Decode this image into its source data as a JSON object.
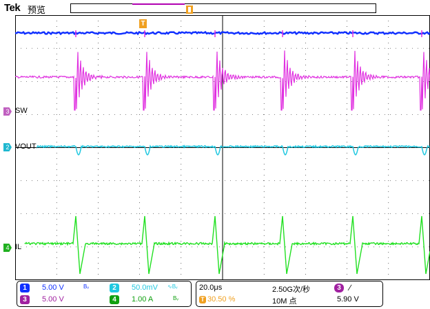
{
  "header": {
    "brand": "Tek",
    "mode": "预览"
  },
  "trigger_marker_label": "T",
  "channels": [
    {
      "id": "1",
      "color": "#1030ff",
      "label": "",
      "scale": "5.00 V",
      "bw": "Bᵥ"
    },
    {
      "id": "2",
      "color": "#20c8e0",
      "label": "VOUT",
      "scale": "50.0mV",
      "bw": "∿Bᵥ"
    },
    {
      "id": "3",
      "color": "#c040c0",
      "label": "SW",
      "scale": "5.00 V",
      "bw": ""
    },
    {
      "id": "4",
      "color": "#20d020",
      "label": "IL",
      "scale": "1.00 A",
      "bw": "Bᵥ"
    }
  ],
  "timebase": {
    "scale": "20.0μs",
    "trigger_pos": "30.50 %",
    "sample_rate": "2.50G次/秒",
    "record_length": "10M 点"
  },
  "trigger": {
    "source": "3",
    "slope": "∕",
    "level": "5.90 V"
  },
  "colors": {
    "ch1": "#1030ff",
    "ch2": "#20c8e0",
    "ch3": "#e030e0",
    "ch4": "#20e020",
    "trigger": "#f0a020",
    "grid": "#000000"
  }
}
